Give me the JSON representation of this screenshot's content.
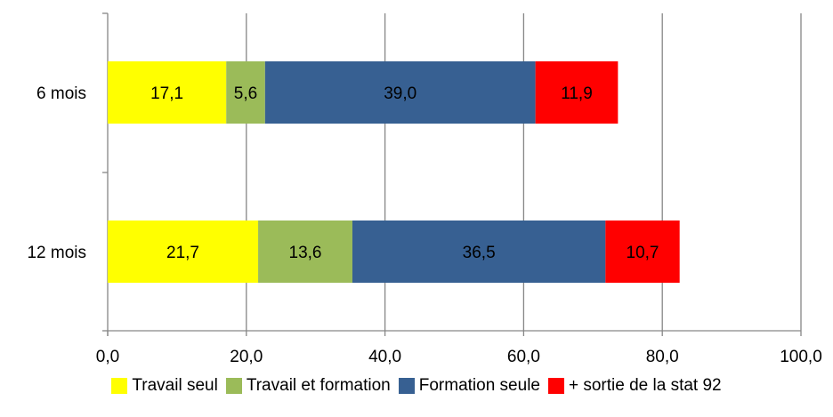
{
  "chart_data": {
    "type": "bar",
    "orientation": "horizontal",
    "stacked": true,
    "categories": [
      "6 mois",
      "12 mois"
    ],
    "series": [
      {
        "name": "Travail seul",
        "color": "#FFFF00",
        "values": [
          17.1,
          21.7
        ],
        "labels": [
          "17,1",
          "21,7"
        ]
      },
      {
        "name": "Travail et formation",
        "color": "#9BBB59",
        "values": [
          5.6,
          13.6
        ],
        "labels": [
          "5,6",
          "13,6"
        ]
      },
      {
        "name": "Formation seule",
        "color": "#376092",
        "values": [
          39.0,
          36.5
        ],
        "labels": [
          "39,0",
          "36,5"
        ]
      },
      {
        "name": "+ sortie de la stat 92",
        "color": "#FF0000",
        "values": [
          11.9,
          10.7
        ],
        "labels": [
          "11,9",
          "10,7"
        ]
      }
    ],
    "xlim": [
      0,
      100
    ],
    "xticks": [
      0,
      20,
      40,
      60,
      80,
      100
    ],
    "xtick_labels": [
      "0,0",
      "20,0",
      "40,0",
      "60,0",
      "80,0",
      "100,0"
    ],
    "grid": "vertical",
    "legend_position": "bottom"
  }
}
